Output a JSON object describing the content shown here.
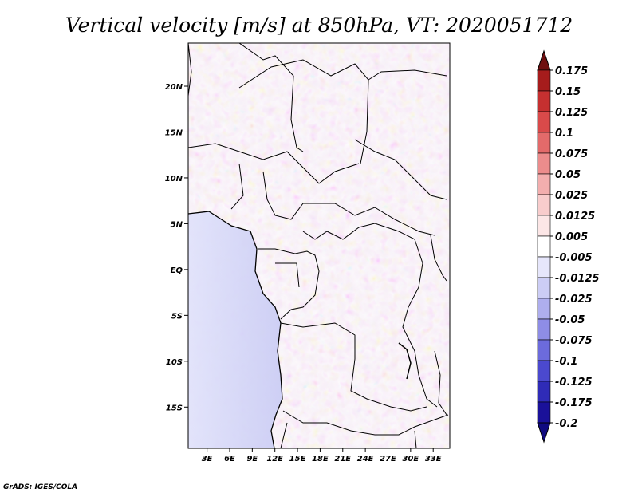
{
  "chart_data": {
    "type": "heatmap",
    "title": "Vertical velocity [m/s] at 850hPa, VT: 2020051712",
    "x_tick_labels": [
      "3E",
      "6E",
      "9E",
      "12E",
      "15E",
      "18E",
      "21E",
      "24E",
      "27E",
      "30E",
      "33E"
    ],
    "x_tick_values": [
      3,
      6,
      9,
      12,
      15,
      18,
      21,
      24,
      27,
      30,
      33
    ],
    "y_tick_labels": [
      "20N",
      "15N",
      "10N",
      "5N",
      "EQ",
      "5S",
      "10S",
      "15S"
    ],
    "y_tick_values": [
      20,
      15,
      10,
      5,
      0,
      -5,
      -10,
      -15
    ],
    "xlim": [
      0.5,
      35.2
    ],
    "ylim": [
      -19.5,
      24.7
    ],
    "colorbar": {
      "levels": [
        "0.175",
        "0.15",
        "0.125",
        "0.1",
        "0.075",
        "0.05",
        "0.025",
        "0.0125",
        "0.005",
        "-0.005",
        "-0.0125",
        "-0.025",
        "-0.05",
        "-0.075",
        "-0.1",
        "-0.125",
        "-0.175",
        "-0.2"
      ],
      "colors": [
        "#6e0f10",
        "#a61c1c",
        "#c53030",
        "#d94a4a",
        "#e36a6a",
        "#ec8c8c",
        "#f3aeae",
        "#f8cccc",
        "#fce6e6",
        "#ffffff",
        "#e6e6fb",
        "#cccdf5",
        "#aeaeee",
        "#8e8de6",
        "#6c6bdc",
        "#4b49ce",
        "#2f2bb7",
        "#1a1199",
        "#100a80"
      ]
    }
  },
  "credit": "GrADS: IGES/COLA"
}
